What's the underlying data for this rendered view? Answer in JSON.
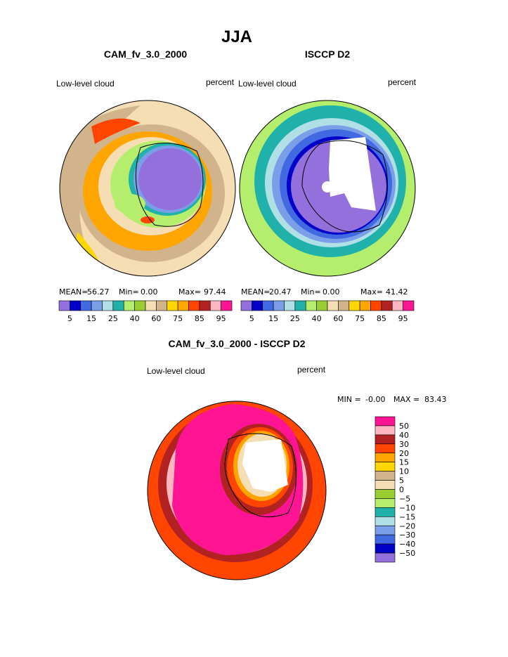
{
  "title": "JJA",
  "panels": [
    {
      "title": "CAM_fv_3.0_2000",
      "left_label": "Low-level cloud",
      "right_label": "percent",
      "stats": [
        {
          "label": "MEAN=",
          "value": "56.27"
        },
        {
          "label": "Min=",
          "value": "0.00"
        },
        {
          "label": "Max=",
          "value": "97.44"
        }
      ]
    },
    {
      "title": "ISCCP D2",
      "left_label": "Low-level cloud",
      "right_label": "percent",
      "stats": [
        {
          "label": "MEAN=",
          "value": "20.47"
        },
        {
          "label": "Min=",
          "value": "0.00"
        },
        {
          "label": "Max=",
          "value": "41.42"
        }
      ]
    }
  ],
  "colorbar": {
    "colors": [
      "#9370db",
      "#0000c8",
      "#4169e1",
      "#7b9ee8",
      "#b0e0e6",
      "#20b2aa",
      "#b4ee6c",
      "#9acd32",
      "#f5deb3",
      "#d2b48c",
      "#ffd700",
      "#ffa500",
      "#ff4500",
      "#b22222",
      "#ffb6c1",
      "#ff1493"
    ],
    "labels": [
      "5",
      "15",
      "25",
      "40",
      "60",
      "75",
      "85",
      "95"
    ]
  },
  "difference": {
    "title": "CAM_fv_3.0_2000 - ISCCP D2",
    "left_label": "Low-level cloud",
    "right_label": "percent",
    "min_label": "MIN =",
    "min": "-0.00",
    "max_label": "MAX =",
    "max": "83.43",
    "colorbar": {
      "colors": [
        "#ff1493",
        "#ffb6c1",
        "#b22222",
        "#ff4500",
        "#ffa500",
        "#ffd700",
        "#d2b48c",
        "#f5deb3",
        "#9acd32",
        "#b4ee6c",
        "#20b2aa",
        "#b0e0e6",
        "#7b9ee8",
        "#4169e1",
        "#0000c8",
        "#9370db"
      ],
      "labels": [
        "50",
        "40",
        "30",
        "20",
        "15",
        "10",
        "5",
        "0",
        "−5",
        "−10",
        "−15",
        "−20",
        "−30",
        "−40",
        "−50"
      ]
    }
  }
}
